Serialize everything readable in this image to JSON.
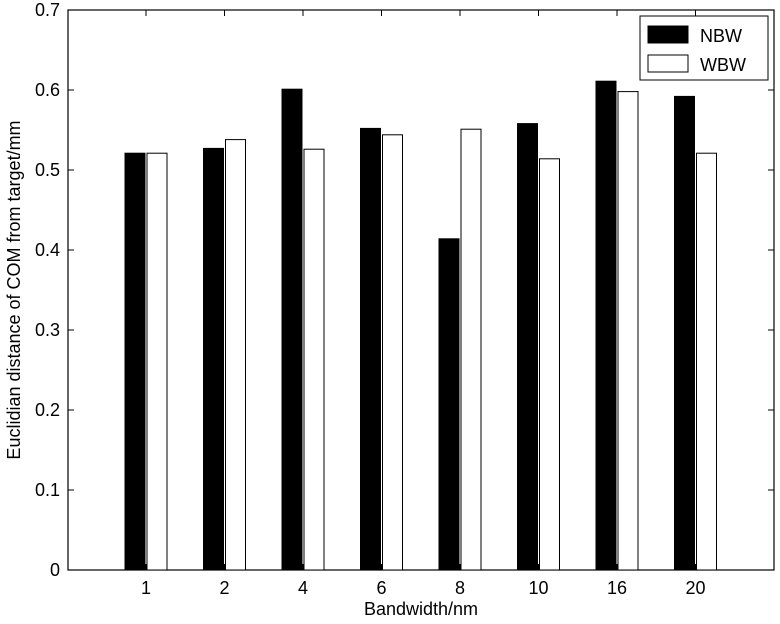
{
  "chart_data": {
    "type": "bar",
    "title": "",
    "xlabel": "Bandwidth/nm",
    "ylabel": "Euclidian distance of COM from target/mm",
    "categories": [
      "1",
      "2",
      "4",
      "6",
      "8",
      "10",
      "16",
      "20"
    ],
    "series": [
      {
        "name": "NBW",
        "color": "#000000",
        "values": [
          0.521,
          0.527,
          0.601,
          0.552,
          0.414,
          0.558,
          0.611,
          0.592
        ]
      },
      {
        "name": "WBW",
        "color": "#ffffff",
        "values": [
          0.521,
          0.538,
          0.526,
          0.544,
          0.551,
          0.514,
          0.598,
          0.521
        ]
      }
    ],
    "ylim": [
      0,
      0.7
    ],
    "yticks": [
      "0",
      "0.1",
      "0.2",
      "0.3",
      "0.4",
      "0.5",
      "0.6",
      "0.7"
    ],
    "ytick_values": [
      0,
      0.1,
      0.2,
      0.3,
      0.4,
      0.5,
      0.6,
      0.7
    ],
    "grid": false,
    "legend_position": "top-right"
  }
}
